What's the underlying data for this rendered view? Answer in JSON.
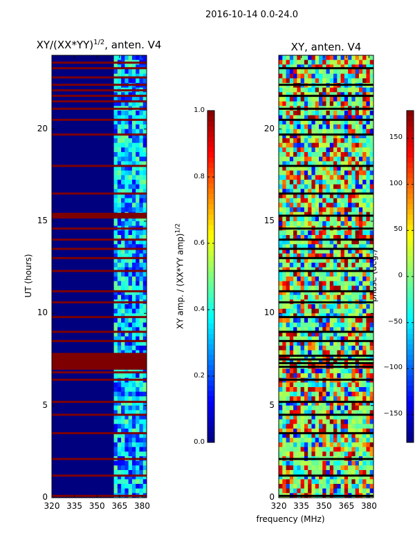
{
  "figure_title": "2016-10-14 0.0-24.0",
  "colors": {
    "jet_low": "#00007f",
    "jet_high": "#7f0000",
    "flag_row": "#7f0000",
    "phase_flag": "#000000",
    "phase_base": "#7dff7a"
  },
  "chart_data": [
    {
      "type": "heatmap",
      "name": "normalized-xy-amplitude",
      "title_main": "XY/(XX*YY)",
      "title_sup": "1/2",
      "title_suffix": ", anten. V4",
      "x": {
        "label": "frequency (MHz)",
        "range": [
          320,
          383
        ],
        "ticks": [
          320,
          335,
          350,
          365,
          380
        ]
      },
      "y": {
        "label": "UT (hours)",
        "range": [
          0,
          24
        ],
        "ticks": [
          0,
          5,
          10,
          15,
          20
        ]
      },
      "colorbar": {
        "label": "XY amp. / (XX*YY amp)",
        "label_sup": "1/2",
        "range": [
          0.0,
          1.0
        ],
        "ticks": [
          "0.0",
          "0.2",
          "0.4",
          "0.6",
          "0.8",
          "1.0"
        ]
      },
      "flagged_hours": [
        0.1,
        1.2,
        2.1,
        3.5,
        4.5,
        5.2,
        6.4,
        6.8,
        7.0,
        7.1,
        7.2,
        7.3,
        7.4,
        7.5,
        7.6,
        7.7,
        7.8,
        8.5,
        9.0,
        9.8,
        10.6,
        11.2,
        12.3,
        13.0,
        13.5,
        14.0,
        14.6,
        15.2,
        15.3,
        15.4,
        16.5,
        18.0,
        19.7,
        20.5,
        21.1,
        21.5,
        21.8,
        22.1,
        22.4,
        22.8,
        23.3,
        23.6
      ],
      "active_band_mhz": [
        362,
        383
      ]
    },
    {
      "type": "heatmap",
      "name": "xy-phase",
      "title_main": "XY, anten. V4",
      "x": {
        "label": "frequency (MHz)",
        "range": [
          320,
          383
        ],
        "ticks": [
          320,
          335,
          350,
          365,
          380
        ]
      },
      "y": {
        "label": "",
        "range": [
          0,
          24
        ],
        "ticks": [
          0,
          5,
          10,
          15,
          20
        ]
      },
      "colorbar": {
        "label": "phase (deg.)",
        "range": [
          -180,
          180
        ],
        "ticks": [
          "−150",
          "−100",
          "−50",
          "0",
          "50",
          "100",
          "150"
        ]
      },
      "flagged_hours": [
        0.1,
        1.2,
        2.1,
        3.5,
        4.5,
        5.2,
        6.4,
        7.1,
        7.3,
        7.5,
        7.7,
        8.5,
        9.0,
        9.8,
        10.6,
        11.2,
        12.3,
        13.0,
        13.5,
        14.0,
        14.6,
        15.3,
        16.5,
        18.0,
        19.7,
        20.5,
        21.1,
        21.8,
        22.4,
        23.3
      ]
    }
  ],
  "shared_xlabel": "frequency (MHz)"
}
